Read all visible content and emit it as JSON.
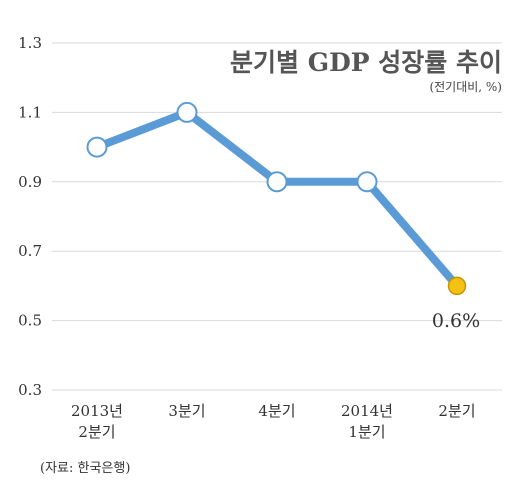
{
  "chart_data": {
    "type": "line",
    "title": "분기별 GDP 성장률 추이",
    "subtitle": "(전기대비, %)",
    "source": "(자료: 한국은행)",
    "categories": [
      [
        "2013년",
        "2분기"
      ],
      [
        "3분기"
      ],
      [
        "4분기"
      ],
      [
        "2014년",
        "1분기"
      ],
      [
        "2분기"
      ]
    ],
    "values": [
      1.0,
      1.1,
      0.9,
      0.9,
      0.6
    ],
    "yticks": [
      "0.3",
      "0.5",
      "0.7",
      "0.9",
      "1.1",
      "1.3"
    ],
    "ylim": [
      0.3,
      1.3
    ],
    "grid": true,
    "highlight_index": 4,
    "highlight_label": "0.6%",
    "colors": {
      "line": "#5b9bd5",
      "marker_fill": "#ffffff",
      "marker_stroke": "#5b9bd5",
      "highlight_fill": "#f5c115",
      "highlight_stroke": "#c49500",
      "grid": "#d9d9d9"
    }
  }
}
